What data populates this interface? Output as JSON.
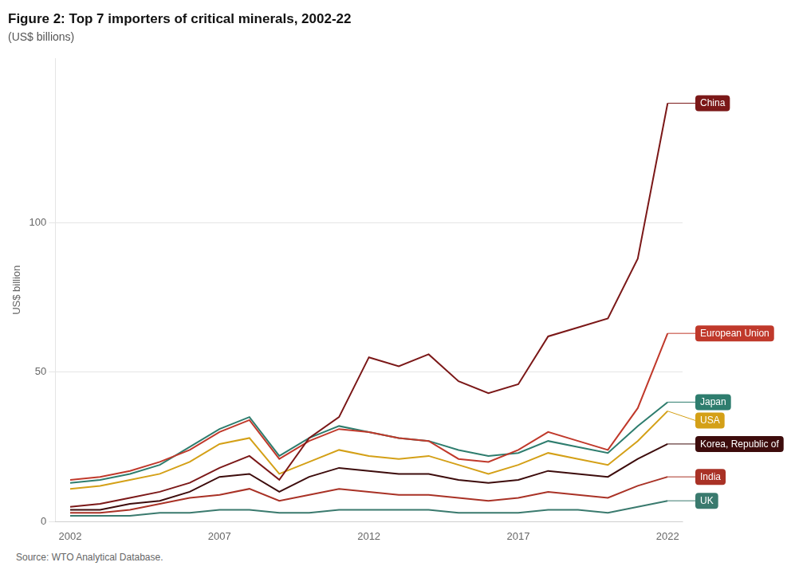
{
  "chart_data": {
    "type": "line",
    "title": "Figure 2: Top 7 importers of critical minerals, 2002-22",
    "subtitle": "(US$ billions)",
    "ylabel": "US$ billion",
    "source": "Source: WTO Analytical Database.",
    "x": [
      2002,
      2003,
      2004,
      2005,
      2006,
      2007,
      2008,
      2009,
      2010,
      2011,
      2012,
      2013,
      2014,
      2015,
      2016,
      2017,
      2018,
      2019,
      2020,
      2021,
      2022
    ],
    "series": [
      {
        "name": "China",
        "color": "#7B1818",
        "values": [
          5,
          6,
          8,
          10,
          13,
          18,
          22,
          14,
          28,
          35,
          55,
          52,
          56,
          47,
          43,
          46,
          62,
          65,
          68,
          88,
          140
        ]
      },
      {
        "name": "European Union",
        "color": "#C0392B",
        "values": [
          14,
          15,
          17,
          20,
          24,
          30,
          34,
          21,
          27,
          31,
          30,
          28,
          27,
          21,
          20,
          24,
          30,
          27,
          24,
          38,
          63
        ]
      },
      {
        "name": "Japan",
        "color": "#2E7D6E",
        "values": [
          13,
          14,
          16,
          19,
          25,
          31,
          35,
          22,
          28,
          32,
          30,
          28,
          27,
          24,
          22,
          23,
          27,
          25,
          23,
          32,
          40
        ]
      },
      {
        "name": "USA",
        "color": "#D4A017",
        "values": [
          11,
          12,
          14,
          16,
          20,
          26,
          28,
          16,
          20,
          24,
          22,
          21,
          22,
          19,
          16,
          19,
          23,
          21,
          19,
          27,
          37
        ]
      },
      {
        "name": "Korea, Republic of",
        "color": "#3D0C0C",
        "values": [
          4,
          4,
          6,
          7,
          10,
          15,
          16,
          10,
          15,
          18,
          17,
          16,
          16,
          14,
          13,
          14,
          17,
          16,
          15,
          21,
          26
        ]
      },
      {
        "name": "India",
        "color": "#A93226",
        "values": [
          3,
          3,
          4,
          6,
          8,
          9,
          11,
          7,
          9,
          11,
          10,
          9,
          9,
          8,
          7,
          8,
          10,
          9,
          8,
          12,
          15
        ]
      },
      {
        "name": "UK",
        "color": "#3A7A6E",
        "values": [
          2,
          2,
          2,
          3,
          3,
          4,
          4,
          3,
          3,
          4,
          4,
          4,
          4,
          3,
          3,
          3,
          4,
          4,
          3,
          5,
          7
        ]
      }
    ],
    "xlim": [
      2001.5,
      2022.5
    ],
    "xticks": [
      2002,
      2007,
      2012,
      2017,
      2022
    ],
    "ylim": [
      0,
      155
    ],
    "yticks": [
      0,
      50,
      100
    ],
    "grid": "y",
    "legend": "right"
  }
}
